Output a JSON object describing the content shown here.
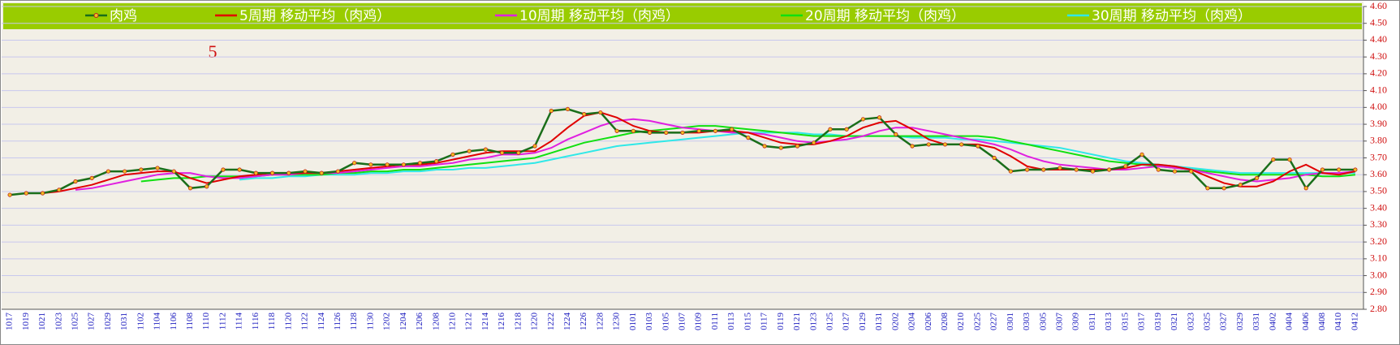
{
  "chart_data": {
    "type": "line",
    "annotation": "5",
    "categories": [
      "1017",
      "1019",
      "1021",
      "1023",
      "1025",
      "1027",
      "1029",
      "1031",
      "1102",
      "1104",
      "1106",
      "1108",
      "1110",
      "1112",
      "1114",
      "1116",
      "1118",
      "1120",
      "1122",
      "1124",
      "1126",
      "1128",
      "1130",
      "1202",
      "1204",
      "1206",
      "1208",
      "1210",
      "1212",
      "1214",
      "1216",
      "1218",
      "1220",
      "1222",
      "1224",
      "1226",
      "1228",
      "1230",
      "0101",
      "0103",
      "0105",
      "0107",
      "0109",
      "0111",
      "0113",
      "0115",
      "0117",
      "0119",
      "0121",
      "0123",
      "0125",
      "0127",
      "0129",
      "0131",
      "0202",
      "0204",
      "0206",
      "0208",
      "0210",
      "0225",
      "0227",
      "0301",
      "0303",
      "0305",
      "0307",
      "0309",
      "0311",
      "0313",
      "0315",
      "0317",
      "0319",
      "0321",
      "0323",
      "0325",
      "0327",
      "0329",
      "0331",
      "0402",
      "0404",
      "0406",
      "0408",
      "0410",
      "0412"
    ],
    "series": [
      {
        "name": "肉鸡",
        "color": "#1a6e1a",
        "marker": true,
        "values": [
          3.48,
          3.49,
          3.49,
          3.51,
          3.56,
          3.58,
          3.62,
          3.62,
          3.63,
          3.64,
          3.62,
          3.52,
          3.53,
          3.63,
          3.63,
          3.61,
          3.61,
          3.61,
          3.62,
          3.61,
          3.62,
          3.67,
          3.66,
          3.66,
          3.66,
          3.67,
          3.68,
          3.72,
          3.74,
          3.75,
          3.73,
          3.73,
          3.77,
          3.98,
          3.99,
          3.96,
          3.97,
          3.86,
          3.86,
          3.85,
          3.85,
          3.85,
          3.86,
          3.86,
          3.87,
          3.82,
          3.77,
          3.76,
          3.77,
          3.79,
          3.87,
          3.87,
          3.93,
          3.94,
          3.84,
          3.77,
          3.78,
          3.78,
          3.78,
          3.77,
          3.7,
          3.62,
          3.63,
          3.63,
          3.64,
          3.63,
          3.62,
          3.63,
          3.65,
          3.72,
          3.63,
          3.62,
          3.62,
          3.52,
          3.52,
          3.54,
          3.58,
          3.69,
          3.69,
          3.52,
          3.63,
          3.63,
          3.63
        ]
      },
      {
        "name": "5周期 移动平均（肉鸡）",
        "color": "#e00000",
        "values": [
          null,
          null,
          3.49,
          3.5,
          3.52,
          3.54,
          3.57,
          3.6,
          3.61,
          3.62,
          3.62,
          3.58,
          3.55,
          3.57,
          3.59,
          3.6,
          3.61,
          3.61,
          3.61,
          3.61,
          3.62,
          3.63,
          3.64,
          3.65,
          3.66,
          3.66,
          3.67,
          3.69,
          3.71,
          3.73,
          3.74,
          3.74,
          3.74,
          3.8,
          3.88,
          3.95,
          3.97,
          3.94,
          3.89,
          3.86,
          3.85,
          3.85,
          3.85,
          3.86,
          3.86,
          3.85,
          3.82,
          3.79,
          3.78,
          3.78,
          3.8,
          3.83,
          3.88,
          3.91,
          3.92,
          3.87,
          3.81,
          3.78,
          3.78,
          3.78,
          3.76,
          3.71,
          3.65,
          3.63,
          3.63,
          3.63,
          3.63,
          3.63,
          3.64,
          3.66,
          3.66,
          3.65,
          3.63,
          3.59,
          3.55,
          3.53,
          3.53,
          3.56,
          3.62,
          3.66,
          3.61,
          3.6,
          3.62
        ]
      },
      {
        "name": "10周期 移动平均（肉鸡）",
        "color": "#e020e0",
        "values": [
          null,
          null,
          null,
          null,
          3.51,
          3.52,
          3.54,
          3.56,
          3.58,
          3.6,
          3.61,
          3.61,
          3.59,
          3.58,
          3.58,
          3.59,
          3.6,
          3.6,
          3.61,
          3.61,
          3.61,
          3.62,
          3.63,
          3.64,
          3.65,
          3.65,
          3.66,
          3.67,
          3.69,
          3.7,
          3.72,
          3.72,
          3.73,
          3.76,
          3.81,
          3.85,
          3.89,
          3.92,
          3.93,
          3.92,
          3.9,
          3.88,
          3.87,
          3.86,
          3.85,
          3.85,
          3.84,
          3.82,
          3.8,
          3.79,
          3.8,
          3.81,
          3.83,
          3.86,
          3.88,
          3.88,
          3.86,
          3.84,
          3.82,
          3.8,
          3.78,
          3.75,
          3.71,
          3.68,
          3.66,
          3.65,
          3.64,
          3.63,
          3.63,
          3.64,
          3.65,
          3.64,
          3.63,
          3.61,
          3.59,
          3.57,
          3.56,
          3.57,
          3.58,
          3.6,
          3.61,
          3.61,
          3.62
        ]
      },
      {
        "name": "20周期 移动平均（肉鸡）",
        "color": "#10e010",
        "values": [
          null,
          null,
          null,
          null,
          null,
          null,
          null,
          null,
          3.56,
          3.57,
          3.58,
          3.58,
          3.59,
          3.59,
          3.59,
          3.59,
          3.6,
          3.6,
          3.6,
          3.6,
          3.61,
          3.61,
          3.62,
          3.62,
          3.63,
          3.63,
          3.64,
          3.65,
          3.66,
          3.67,
          3.68,
          3.69,
          3.7,
          3.73,
          3.76,
          3.79,
          3.81,
          3.83,
          3.85,
          3.86,
          3.87,
          3.88,
          3.89,
          3.89,
          3.88,
          3.87,
          3.86,
          3.85,
          3.84,
          3.83,
          3.83,
          3.83,
          3.83,
          3.83,
          3.83,
          3.83,
          3.83,
          3.83,
          3.83,
          3.83,
          3.82,
          3.8,
          3.78,
          3.76,
          3.74,
          3.72,
          3.7,
          3.68,
          3.67,
          3.66,
          3.65,
          3.64,
          3.63,
          3.62,
          3.61,
          3.6,
          3.6,
          3.6,
          3.6,
          3.6,
          3.59,
          3.59,
          3.6
        ]
      },
      {
        "name": "30周期 移动平均（肉鸡）",
        "color": "#30e8e8",
        "values": [
          null,
          null,
          null,
          null,
          null,
          null,
          null,
          null,
          null,
          null,
          null,
          null,
          null,
          null,
          3.57,
          3.58,
          3.58,
          3.59,
          3.59,
          3.6,
          3.6,
          3.6,
          3.61,
          3.61,
          3.62,
          3.62,
          3.63,
          3.63,
          3.64,
          3.64,
          3.65,
          3.66,
          3.67,
          3.69,
          3.71,
          3.73,
          3.75,
          3.77,
          3.78,
          3.79,
          3.8,
          3.81,
          3.82,
          3.83,
          3.84,
          3.85,
          3.85,
          3.85,
          3.85,
          3.84,
          3.84,
          3.83,
          3.83,
          3.83,
          3.83,
          3.82,
          3.82,
          3.82,
          3.81,
          3.81,
          3.8,
          3.79,
          3.78,
          3.77,
          3.76,
          3.74,
          3.72,
          3.7,
          3.68,
          3.67,
          3.66,
          3.65,
          3.64,
          3.63,
          3.62,
          3.61,
          3.61,
          3.61,
          3.61,
          3.61,
          3.61,
          3.61,
          3.61
        ]
      }
    ],
    "ylim": [
      2.8,
      4.6
    ],
    "yticks": [
      {
        "value": 2.8,
        "label": "2.80"
      },
      {
        "value": 2.9,
        "label": "2.90"
      },
      {
        "value": 3.0,
        "label": "3.00"
      },
      {
        "value": 3.1,
        "label": "3.10"
      },
      {
        "value": 3.2,
        "label": "3.20"
      },
      {
        "value": 3.3,
        "label": "3.30"
      },
      {
        "value": 3.4,
        "label": "3.40"
      },
      {
        "value": 3.5,
        "label": "3.50"
      },
      {
        "value": 3.6,
        "label": "3.60"
      },
      {
        "value": 3.7,
        "label": "3.70"
      },
      {
        "value": 3.8,
        "label": "3.80"
      },
      {
        "value": 3.9,
        "label": "3.90"
      },
      {
        "value": 4.0,
        "label": "4.00"
      },
      {
        "value": 4.1,
        "label": "4.10"
      },
      {
        "value": 4.2,
        "label": "4.20"
      },
      {
        "value": 4.3,
        "label": "4.30"
      },
      {
        "value": 4.4,
        "label": "4.40"
      },
      {
        "value": 4.5,
        "label": "4.50"
      },
      {
        "value": 4.6,
        "label": "4.60"
      }
    ],
    "grid": true
  }
}
